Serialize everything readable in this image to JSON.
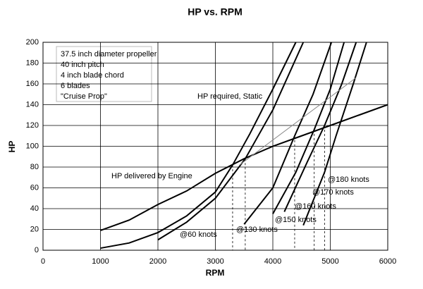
{
  "chart_data": {
    "type": "line",
    "title": "HP vs. RPM",
    "x_label": "RPM",
    "y_label": "HP",
    "xlim": [
      0,
      6000
    ],
    "xticks": [
      0,
      1000,
      2000,
      3000,
      4000,
      5000,
      6000
    ],
    "ylim": [
      0,
      200
    ],
    "yticks": [
      0,
      20,
      40,
      60,
      80,
      100,
      120,
      140,
      160,
      180,
      200
    ],
    "grid": true,
    "annotations": [
      "37.5 inch diameter propeller",
      "40 inch pitch",
      "4 inch blade chord",
      "6 blades",
      "\"Cruise Prop\""
    ],
    "series": [
      {
        "name": "HP delivered by Engine",
        "color": "#000000",
        "x": [
          1000,
          1500,
          2000,
          2500,
          3000,
          3500,
          4000,
          4500,
          5000,
          5500,
          6000
        ],
        "values": [
          19,
          29,
          44,
          57,
          74,
          88,
          100,
          110,
          120,
          130,
          140
        ]
      },
      {
        "name": "HP required, Static",
        "color": "#000000",
        "x": [
          1000,
          1500,
          2000,
          2500,
          3000,
          3300,
          3600,
          4000,
          4400
        ],
        "values": [
          2,
          7,
          17,
          33,
          56,
          82,
          112,
          155,
          200
        ]
      },
      {
        "name": "@60 knots",
        "color": "#000000",
        "x": [
          2000,
          2500,
          3000,
          3520,
          4000,
          4530
        ],
        "values": [
          10,
          27,
          50,
          88,
          135,
          200
        ]
      },
      {
        "name": "@130 knots",
        "color": "#000000",
        "x": [
          3500,
          4000,
          4380,
          4700,
          5020
        ],
        "values": [
          25,
          60,
          110,
          150,
          200
        ]
      },
      {
        "name": "@150 knots",
        "color": "#000000",
        "x": [
          4000,
          4400,
          4720,
          5000,
          5240
        ],
        "values": [
          35,
          75,
          116,
          155,
          200
        ]
      },
      {
        "name": "@160 knots",
        "color": "#000000",
        "x": [
          4200,
          4600,
          4900,
          5200,
          5450
        ],
        "values": [
          37,
          85,
          120,
          160,
          200
        ]
      },
      {
        "name": "@170 knots",
        "color": "#000000",
        "x": [
          4530,
          4900,
          5100,
          5400,
          5630
        ],
        "values": [
          24,
          75,
          110,
          160,
          200
        ]
      },
      {
        "name": "@180 knots",
        "color": "#888888",
        "x": [
          3420,
          5450
        ],
        "values": [
          82,
          166
        ]
      }
    ],
    "drop_lines": [
      {
        "x": 3300,
        "y": 82
      },
      {
        "x": 3520,
        "y": 88
      },
      {
        "x": 4380,
        "y": 110
      },
      {
        "x": 4720,
        "y": 116
      },
      {
        "x": 4900,
        "y": 120
      }
    ]
  }
}
